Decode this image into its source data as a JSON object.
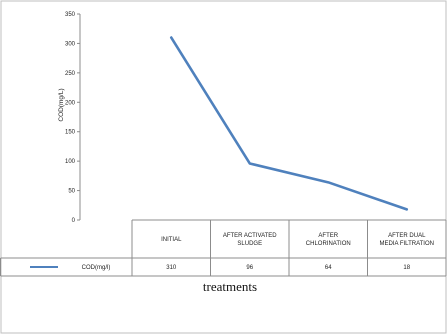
{
  "chart_data": {
    "type": "line",
    "categories": [
      "INITIAL",
      "AFTER ACTIVATED SLUDGE",
      "AFTER CHLORINATION",
      "AFTER DUAL MEDIA FILTRATION"
    ],
    "category_lines": [
      [
        "INITIAL"
      ],
      [
        "AFTER ACTIVATED",
        "SLUDGE"
      ],
      [
        "AFTER",
        "CHLORINATION"
      ],
      [
        "AFTER DUAL",
        "MEDIA FILTRATION"
      ]
    ],
    "series": [
      {
        "name": "COD(mg/l)",
        "values": [
          310,
          96,
          64,
          18
        ],
        "value_labels": [
          "310",
          "96",
          "64",
          "18"
        ],
        "color": "#4F81BD"
      }
    ],
    "ylabel": "COD(mg/L)",
    "xlabel": "treatments",
    "ylim": [
      0,
      350
    ],
    "yticks": [
      "0",
      "50",
      "100",
      "150",
      "200",
      "250",
      "300",
      "350"
    ],
    "grid": false,
    "legend": "data-table"
  }
}
